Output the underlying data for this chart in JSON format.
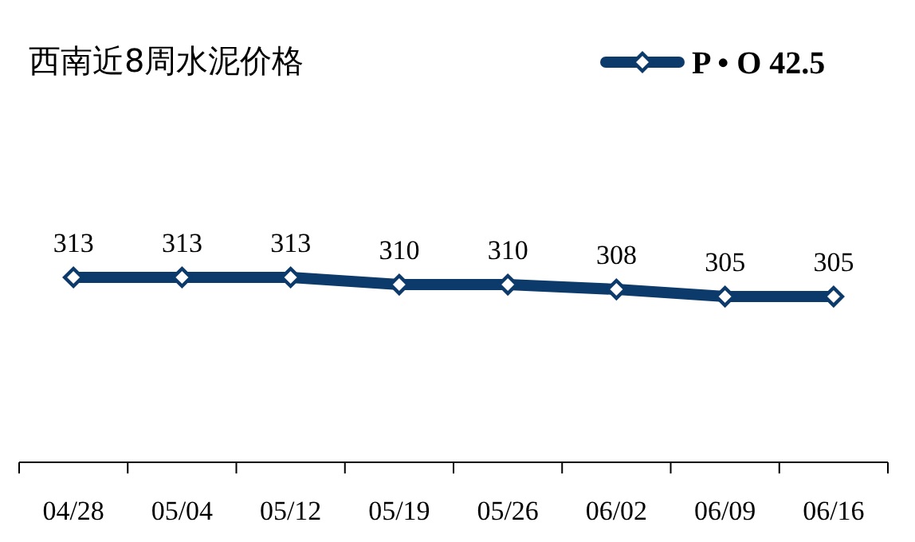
{
  "chart_data": {
    "type": "line",
    "title": "西南近8周水泥价格",
    "categories": [
      "04/28",
      "05/04",
      "05/12",
      "05/19",
      "05/26",
      "06/02",
      "06/09",
      "06/16"
    ],
    "series": [
      {
        "name": "P • O 42.5",
        "color": "#0b3a6b",
        "values": [
          313,
          313,
          313,
          310,
          310,
          308,
          305,
          305
        ]
      }
    ],
    "data_labels": true,
    "legend": "top right",
    "marker": "diamond",
    "line_style": "solid"
  }
}
